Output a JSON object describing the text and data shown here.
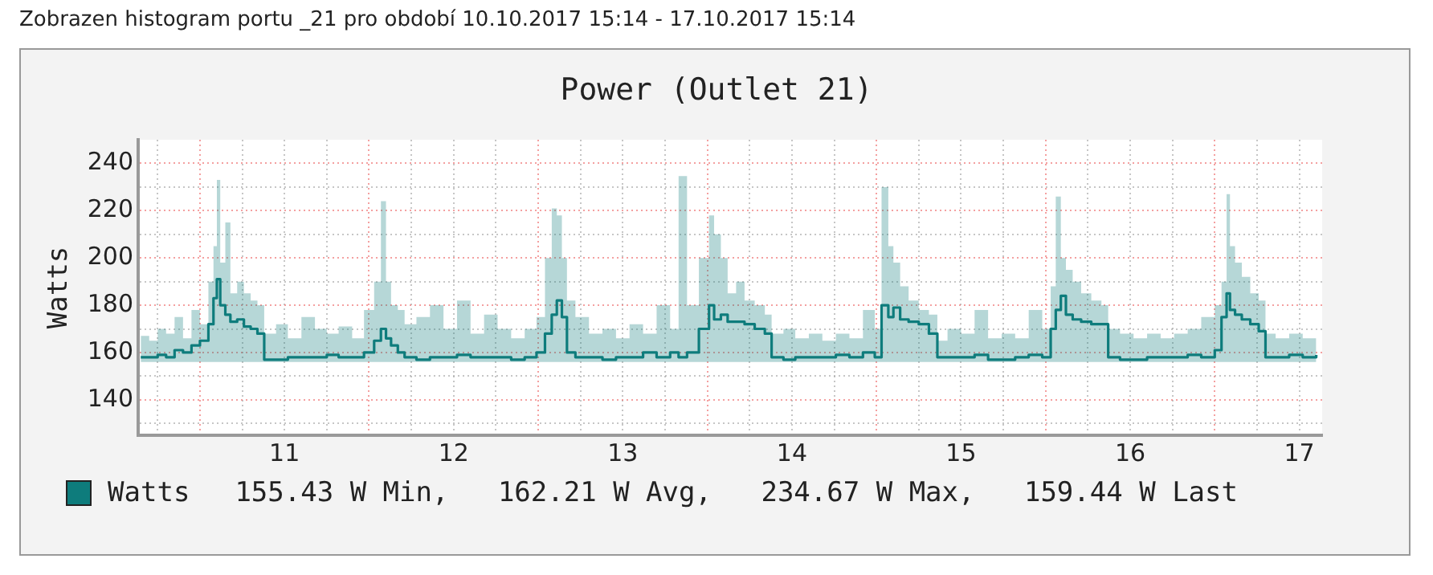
{
  "chart_data": {
    "type": "step",
    "title": "Power (Outlet 21)",
    "ylabel": "Watts",
    "annotations": [
      "Zobrazen histogram portu _21 pro období 10.10.2017 15:14 - 17.10.2017 15:14",
      "155.43 W Min,   162.21 W Avg,   234.67 W Max,   159.44 W Last"
    ],
    "x": [
      10.65,
      10.7,
      10.75,
      10.8,
      10.85,
      10.9,
      10.95,
      11.0,
      11.05,
      11.08,
      11.1,
      11.12,
      11.15,
      11.18,
      11.22,
      11.26,
      11.3,
      11.34,
      11.38,
      11.45,
      11.52,
      11.6,
      11.68,
      11.75,
      11.82,
      11.9,
      11.97,
      12.03,
      12.07,
      12.1,
      12.13,
      12.17,
      12.21,
      12.28,
      12.36,
      12.44,
      12.52,
      12.6,
      12.68,
      12.76,
      12.84,
      12.92,
      12.99,
      13.04,
      13.08,
      13.11,
      13.14,
      13.17,
      13.22,
      13.3,
      13.38,
      13.46,
      13.54,
      13.62,
      13.7,
      13.78,
      13.83,
      13.88,
      13.95,
      14.01,
      14.04,
      14.08,
      14.12,
      14.17,
      14.22,
      14.28,
      14.34,
      14.38,
      14.45,
      14.52,
      14.6,
      14.68,
      14.76,
      14.84,
      14.92,
      14.99,
      15.03,
      15.07,
      15.1,
      15.14,
      15.19,
      15.25,
      15.31,
      15.36,
      15.42,
      15.5,
      15.58,
      15.66,
      15.74,
      15.82,
      15.9,
      15.98,
      16.03,
      16.06,
      16.09,
      16.12,
      16.16,
      16.21,
      16.27,
      16.33,
      16.37,
      16.44,
      16.52,
      16.6,
      16.68,
      16.76,
      16.84,
      16.92,
      17.0,
      17.04,
      17.07,
      17.09,
      17.12,
      17.16,
      17.21,
      17.26,
      17.3,
      17.36,
      17.44,
      17.52,
      17.6
    ],
    "series": [
      {
        "name": "Watts",
        "color": "#0e7c7c",
        "values": [
          158,
          158,
          159,
          158,
          161,
          160,
          163,
          165,
          172,
          183,
          191,
          180,
          176,
          173,
          174,
          171,
          170,
          168,
          157,
          157,
          158,
          158,
          158,
          159,
          158,
          158,
          160,
          165,
          170,
          166,
          163,
          160,
          158,
          157,
          158,
          158,
          159,
          158,
          158,
          158,
          157,
          158,
          160,
          168,
          176,
          182,
          175,
          160,
          158,
          158,
          157,
          158,
          158,
          160,
          158,
          160,
          158,
          160,
          170,
          180,
          174,
          176,
          173,
          173,
          172,
          170,
          168,
          158,
          157,
          158,
          158,
          158,
          159,
          158,
          160,
          158,
          180,
          175,
          179,
          174,
          173,
          172,
          168,
          158,
          158,
          158,
          159,
          157,
          157,
          158,
          159,
          158,
          170,
          178,
          184,
          176,
          174,
          173,
          172,
          172,
          158,
          157,
          157,
          158,
          158,
          158,
          159,
          158,
          161,
          175,
          185,
          178,
          176,
          174,
          172,
          169,
          158,
          158,
          159,
          158,
          159
        ],
        "upper": [
          167,
          165,
          170,
          168,
          175,
          166,
          178,
          172,
          190,
          205,
          233,
          198,
          215,
          185,
          190,
          185,
          182,
          180,
          168,
          172,
          166,
          175,
          170,
          168,
          171,
          166,
          178,
          190,
          224,
          190,
          180,
          178,
          172,
          175,
          180,
          170,
          182,
          168,
          176,
          170,
          166,
          170,
          175,
          200,
          221,
          218,
          200,
          182,
          175,
          168,
          170,
          166,
          172,
          168,
          180,
          170,
          234.67,
          180,
          200,
          218,
          210,
          200,
          185,
          190,
          182,
          180,
          176,
          168,
          170,
          166,
          168,
          165,
          168,
          166,
          178,
          170,
          230,
          205,
          198,
          188,
          182,
          178,
          176,
          165,
          170,
          168,
          178,
          166,
          168,
          166,
          178,
          170,
          188,
          226,
          200,
          195,
          190,
          185,
          182,
          180,
          170,
          168,
          166,
          168,
          166,
          168,
          170,
          175,
          180,
          190,
          227,
          205,
          198,
          192,
          185,
          182,
          168,
          166,
          168,
          166,
          170
        ],
        "lower": [
          156,
          156,
          156,
          156,
          156,
          156,
          156,
          156,
          156,
          156,
          156,
          156,
          156,
          156,
          156,
          156,
          156,
          156,
          156,
          156,
          156,
          156,
          156,
          156,
          156,
          156,
          156,
          156,
          156,
          156,
          156,
          156,
          156,
          156,
          156,
          156,
          156,
          156,
          156,
          156,
          156,
          156,
          156,
          156,
          156,
          156,
          156,
          156,
          156,
          156,
          156,
          156,
          156,
          156,
          156,
          156,
          156,
          156,
          156,
          156,
          156,
          156,
          156,
          156,
          156,
          156,
          156,
          156,
          156,
          156,
          156,
          156,
          156,
          156,
          156,
          156,
          156,
          156,
          156,
          156,
          156,
          156,
          156,
          156,
          156,
          156,
          156,
          156,
          156,
          156,
          156,
          156,
          156,
          156,
          156,
          156,
          156,
          156,
          156,
          156,
          156,
          156,
          156,
          156,
          156,
          156,
          156,
          156,
          156,
          156,
          156,
          156,
          156,
          156,
          156,
          156,
          156,
          156,
          156,
          156,
          156
        ]
      }
    ],
    "xlim": [
      10.635,
      17.635
    ],
    "xticks": [
      {
        "value": 10.75,
        "label": null
      },
      {
        "value": 11,
        "label": null
      },
      {
        "value": 11.25,
        "label": null
      },
      {
        "value": 11.5,
        "label": "11"
      },
      {
        "value": 11.75,
        "label": null
      },
      {
        "value": 12,
        "label": null
      },
      {
        "value": 12.25,
        "label": null
      },
      {
        "value": 12.5,
        "label": "12"
      },
      {
        "value": 12.75,
        "label": null
      },
      {
        "value": 13,
        "label": null
      },
      {
        "value": 13.25,
        "label": null
      },
      {
        "value": 13.5,
        "label": "13"
      },
      {
        "value": 13.75,
        "label": null
      },
      {
        "value": 14,
        "label": null
      },
      {
        "value": 14.25,
        "label": null
      },
      {
        "value": 14.5,
        "label": "14"
      },
      {
        "value": 14.75,
        "label": null
      },
      {
        "value": 15,
        "label": null
      },
      {
        "value": 15.25,
        "label": null
      },
      {
        "value": 15.5,
        "label": "15"
      },
      {
        "value": 15.75,
        "label": null
      },
      {
        "value": 16,
        "label": null
      },
      {
        "value": 16.25,
        "label": null
      },
      {
        "value": 16.5,
        "label": "16"
      },
      {
        "value": 16.75,
        "label": null
      },
      {
        "value": 17,
        "label": null
      },
      {
        "value": 17.25,
        "label": null
      },
      {
        "value": 17.5,
        "label": "17"
      }
    ],
    "ylim": [
      125,
      250
    ],
    "yticks": [
      {
        "value": 130,
        "label": null
      },
      140,
      {
        "value": 150,
        "label": null
      },
      160,
      {
        "value": 170,
        "label": null
      },
      180,
      {
        "value": 190,
        "label": null
      },
      200,
      {
        "value": 210,
        "label": null
      },
      220,
      {
        "value": 230,
        "label": null
      },
      240
    ],
    "grid": true,
    "legend": "bottom",
    "marker": "none"
  }
}
